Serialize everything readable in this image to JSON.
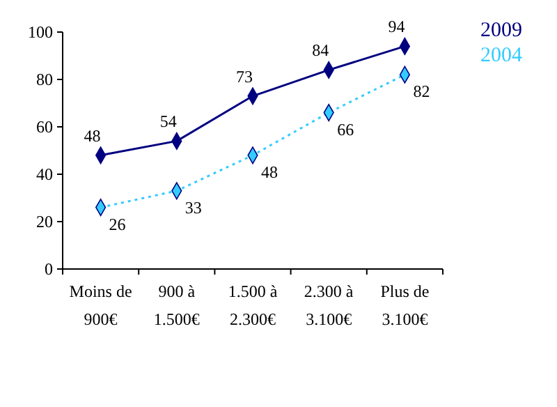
{
  "chart_data": {
    "type": "line",
    "categories": [
      "Moins de 900€",
      "900 à 1.500€",
      "1.500 à 2.300€",
      "2.300 à 3.100€",
      "Plus de 3.100€"
    ],
    "series": [
      {
        "name": "2009",
        "color": "#000080",
        "values": [
          48,
          54,
          73,
          84,
          94
        ],
        "line_style": "solid"
      },
      {
        "name": "2004",
        "color": "#33ccff",
        "values": [
          26,
          33,
          48,
          66,
          82
        ],
        "line_style": "dotted"
      }
    ],
    "ylim": [
      0,
      100
    ],
    "yticks": [
      0,
      20,
      40,
      60,
      80,
      100
    ],
    "grid": false,
    "legend": "top right",
    "marker": "diamond",
    "data_labels": true
  }
}
